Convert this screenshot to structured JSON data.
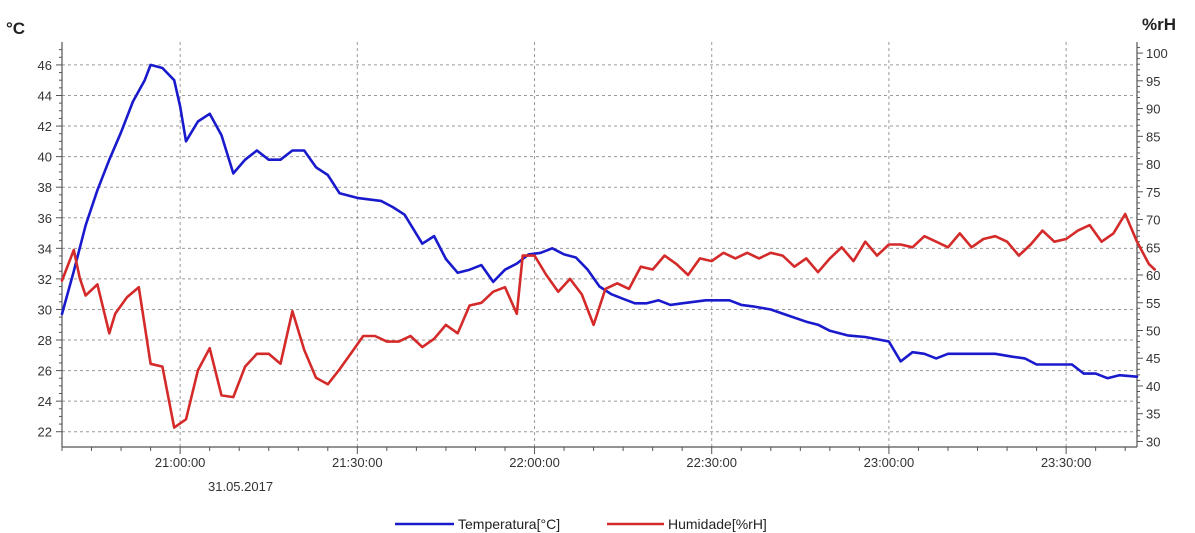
{
  "chart_data": {
    "type": "line",
    "left_unit": "°C",
    "right_unit": "%rH",
    "date_label": "31.05.2017",
    "x_ticks": [
      "21:00:00",
      "21:30:00",
      "22:00:00",
      "22:30:00",
      "23:00:00",
      "23:30:00"
    ],
    "x_range": [
      "20:40:00",
      "23:42:00"
    ],
    "y_left": {
      "range": [
        21,
        47.5
      ],
      "ticks": [
        22,
        24,
        26,
        28,
        30,
        32,
        34,
        36,
        38,
        40,
        42,
        44,
        46
      ]
    },
    "y_right": {
      "range": [
        29,
        102
      ],
      "ticks": [
        30,
        35,
        40,
        45,
        50,
        55,
        60,
        65,
        70,
        75,
        80,
        85,
        90,
        95,
        100
      ]
    },
    "grid": true,
    "legend_position": "bottom",
    "series": [
      {
        "name": "Temperatura[°C]",
        "axis": "left",
        "color": "#1a1acd",
        "points": [
          [
            "20:40",
            29.7
          ],
          [
            "20:42",
            32.5
          ],
          [
            "20:44",
            35.5
          ],
          [
            "20:46",
            37.8
          ],
          [
            "20:48",
            39.8
          ],
          [
            "20:50",
            41.6
          ],
          [
            "20:52",
            43.6
          ],
          [
            "20:54",
            45.0
          ],
          [
            "20:55",
            46.0
          ],
          [
            "20:57",
            45.8
          ],
          [
            "20:59",
            45.0
          ],
          [
            "21:00",
            43.3
          ],
          [
            "21:01",
            41.0
          ],
          [
            "21:03",
            42.3
          ],
          [
            "21:05",
            42.8
          ],
          [
            "21:07",
            41.4
          ],
          [
            "21:09",
            38.9
          ],
          [
            "21:11",
            39.8
          ],
          [
            "21:13",
            40.4
          ],
          [
            "21:15",
            39.8
          ],
          [
            "21:17",
            39.8
          ],
          [
            "21:19",
            40.4
          ],
          [
            "21:21",
            40.4
          ],
          [
            "21:23",
            39.3
          ],
          [
            "21:25",
            38.8
          ],
          [
            "21:27",
            37.6
          ],
          [
            "21:30",
            37.3
          ],
          [
            "21:34",
            37.1
          ],
          [
            "21:36",
            36.7
          ],
          [
            "21:38",
            36.2
          ],
          [
            "21:41",
            34.3
          ],
          [
            "21:43",
            34.8
          ],
          [
            "21:45",
            33.3
          ],
          [
            "21:47",
            32.4
          ],
          [
            "21:49",
            32.6
          ],
          [
            "21:51",
            32.9
          ],
          [
            "21:53",
            31.8
          ],
          [
            "21:55",
            32.6
          ],
          [
            "21:57",
            33.0
          ],
          [
            "21:59",
            33.6
          ],
          [
            "22:01",
            33.7
          ],
          [
            "22:03",
            34.0
          ],
          [
            "22:05",
            33.6
          ],
          [
            "22:07",
            33.4
          ],
          [
            "22:09",
            32.6
          ],
          [
            "22:11",
            31.5
          ],
          [
            "22:13",
            31.0
          ],
          [
            "22:15",
            30.7
          ],
          [
            "22:17",
            30.4
          ],
          [
            "22:19",
            30.4
          ],
          [
            "22:21",
            30.6
          ],
          [
            "22:23",
            30.3
          ],
          [
            "22:25",
            30.4
          ],
          [
            "22:27",
            30.5
          ],
          [
            "22:29",
            30.6
          ],
          [
            "22:31",
            30.6
          ],
          [
            "22:33",
            30.6
          ],
          [
            "22:35",
            30.3
          ],
          [
            "22:37",
            30.2
          ],
          [
            "22:40",
            30.0
          ],
          [
            "22:43",
            29.6
          ],
          [
            "22:46",
            29.2
          ],
          [
            "22:48",
            29.0
          ],
          [
            "22:50",
            28.6
          ],
          [
            "22:53",
            28.3
          ],
          [
            "22:56",
            28.2
          ],
          [
            "23:00",
            27.9
          ],
          [
            "23:02",
            26.6
          ],
          [
            "23:04",
            27.2
          ],
          [
            "23:06",
            27.1
          ],
          [
            "23:08",
            26.8
          ],
          [
            "23:10",
            27.1
          ],
          [
            "23:14",
            27.1
          ],
          [
            "23:18",
            27.1
          ],
          [
            "23:21",
            26.9
          ],
          [
            "23:23",
            26.8
          ],
          [
            "23:25",
            26.4
          ],
          [
            "23:28",
            26.4
          ],
          [
            "23:31",
            26.4
          ],
          [
            "23:33",
            25.8
          ],
          [
            "23:35",
            25.8
          ],
          [
            "23:37",
            25.5
          ],
          [
            "23:39",
            25.7
          ],
          [
            "23:42",
            25.6
          ]
        ]
      },
      {
        "name": "Humidade[%rH]",
        "axis": "right",
        "color": "#d42a2a",
        "points": [
          [
            "20:40",
            59.0
          ],
          [
            "20:42",
            64.5
          ],
          [
            "20:43",
            59.5
          ],
          [
            "20:44",
            56.3
          ],
          [
            "20:46",
            58.3
          ],
          [
            "20:48",
            49.5
          ],
          [
            "20:49",
            53.0
          ],
          [
            "20:51",
            56.0
          ],
          [
            "20:53",
            57.8
          ],
          [
            "20:55",
            44.0
          ],
          [
            "20:57",
            43.5
          ],
          [
            "20:59",
            32.5
          ],
          [
            "21:01",
            34.0
          ],
          [
            "21:03",
            42.8
          ],
          [
            "21:05",
            46.8
          ],
          [
            "21:07",
            38.3
          ],
          [
            "21:09",
            38.0
          ],
          [
            "21:11",
            43.5
          ],
          [
            "21:13",
            45.8
          ],
          [
            "21:15",
            45.8
          ],
          [
            "21:17",
            44.0
          ],
          [
            "21:19",
            53.5
          ],
          [
            "21:21",
            46.5
          ],
          [
            "21:23",
            41.5
          ],
          [
            "21:25",
            40.3
          ],
          [
            "21:27",
            43.0
          ],
          [
            "21:29",
            46.0
          ],
          [
            "21:31",
            49.0
          ],
          [
            "21:33",
            49.0
          ],
          [
            "21:35",
            48.0
          ],
          [
            "21:37",
            48.0
          ],
          [
            "21:39",
            49.0
          ],
          [
            "21:41",
            47.0
          ],
          [
            "21:43",
            48.5
          ],
          [
            "21:45",
            51.0
          ],
          [
            "21:47",
            49.5
          ],
          [
            "21:49",
            54.5
          ],
          [
            "21:51",
            55.0
          ],
          [
            "21:53",
            57.0
          ],
          [
            "21:55",
            57.8
          ],
          [
            "21:57",
            53.0
          ],
          [
            "21:58",
            63.5
          ],
          [
            "22:00",
            63.5
          ],
          [
            "22:02",
            60.0
          ],
          [
            "22:04",
            57.0
          ],
          [
            "22:06",
            59.3
          ],
          [
            "22:08",
            56.5
          ],
          [
            "22:10",
            51.0
          ],
          [
            "22:12",
            57.5
          ],
          [
            "22:14",
            58.5
          ],
          [
            "22:16",
            57.5
          ],
          [
            "22:18",
            61.5
          ],
          [
            "22:20",
            61.0
          ],
          [
            "22:22",
            63.5
          ],
          [
            "22:24",
            62.0
          ],
          [
            "22:26",
            60.0
          ],
          [
            "22:28",
            63.0
          ],
          [
            "22:30",
            62.5
          ],
          [
            "22:32",
            64.0
          ],
          [
            "22:34",
            63.0
          ],
          [
            "22:36",
            64.0
          ],
          [
            "22:38",
            63.0
          ],
          [
            "22:40",
            64.0
          ],
          [
            "22:42",
            63.5
          ],
          [
            "22:44",
            61.5
          ],
          [
            "22:46",
            63.0
          ],
          [
            "22:48",
            60.5
          ],
          [
            "22:50",
            63.0
          ],
          [
            "22:52",
            65.0
          ],
          [
            "22:54",
            62.5
          ],
          [
            "22:56",
            66.0
          ],
          [
            "22:58",
            63.5
          ],
          [
            "23:00",
            65.5
          ],
          [
            "23:02",
            65.5
          ],
          [
            "23:04",
            65.0
          ],
          [
            "23:06",
            67.0
          ],
          [
            "23:08",
            66.0
          ],
          [
            "23:10",
            65.0
          ],
          [
            "23:12",
            67.5
          ],
          [
            "23:14",
            65.0
          ],
          [
            "23:16",
            66.5
          ],
          [
            "23:18",
            67.0
          ],
          [
            "23:20",
            66.0
          ],
          [
            "23:22",
            63.5
          ],
          [
            "23:24",
            65.5
          ],
          [
            "23:26",
            68.0
          ],
          [
            "23:28",
            66.0
          ],
          [
            "23:30",
            66.5
          ],
          [
            "23:32",
            68.0
          ],
          [
            "23:34",
            69.0
          ],
          [
            "23:36",
            66.0
          ],
          [
            "23:38",
            67.5
          ],
          [
            "23:40",
            71.0
          ],
          [
            "23:42",
            66.0
          ],
          [
            "23:44",
            62.0
          ],
          [
            "23:45",
            61.0
          ]
        ]
      }
    ]
  }
}
